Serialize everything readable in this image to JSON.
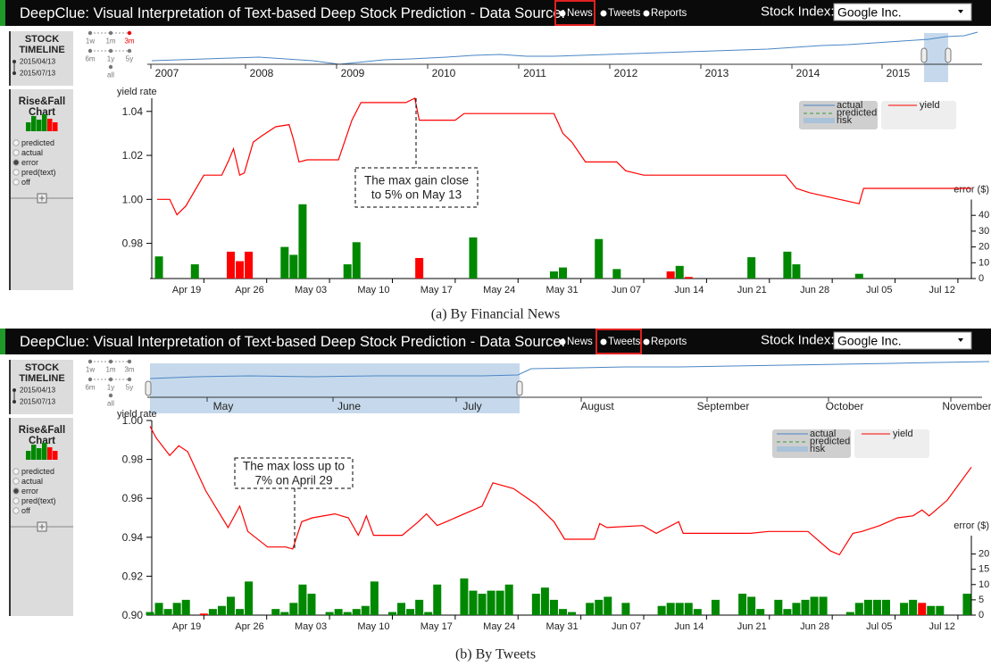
{
  "panels": [
    {
      "header": {
        "title": "DeepClue: Visual Interpretation of Text-based Deep Stock Prediction - Data Source:",
        "sources": [
          "News",
          "Tweets",
          "Reports"
        ],
        "selected_source": 0,
        "stock_label": "Stock Index:",
        "stock": "Google Inc."
      },
      "sidebar": {
        "timeline_title": [
          "STOCK",
          "TIMELINE"
        ],
        "ranges": [
          "1w",
          "1m",
          "3m",
          "6m",
          "1y",
          "5y",
          "all"
        ],
        "selected_range": 2,
        "start_date": "2015/04/13",
        "end_date": "2015/07/13",
        "rise_fall_title": [
          "Rise&Fall",
          "Chart"
        ],
        "options": [
          "predicted",
          "actual",
          "error",
          "pred(text)",
          "off"
        ],
        "selected_option": 2
      },
      "timeline_labels": [
        "2007",
        "2008",
        "2009",
        "2010",
        "2011",
        "2012",
        "2013",
        "2014",
        "2015"
      ],
      "chart": {
        "y_label": "yield rate",
        "y2_label": "error ($)",
        "ylim": [
          0.964,
          1.046
        ],
        "yticks": [
          1.04,
          1.02,
          {
            "value": 1.0,
            "label": "1.00"
          },
          0.98
        ],
        "y2lim": [
          0,
          50
        ],
        "y2ticks": [
          0,
          10,
          20,
          30,
          40
        ],
        "xlim": [
          0,
          91.5
        ],
        "xticks": [
          {
            "value": 6,
            "label": "Apr 19"
          },
          {
            "value": 13,
            "label": "Apr 26"
          },
          {
            "value": 20,
            "label": "May 03"
          },
          {
            "value": 27,
            "label": "May 10"
          },
          {
            "value": 34,
            "label": "May 17"
          },
          {
            "value": 41,
            "label": "May 24"
          },
          {
            "value": 48,
            "label": "May 31"
          },
          {
            "value": 55,
            "label": "Jun 07"
          },
          {
            "value": 62,
            "label": "Jun 14"
          },
          {
            "value": 69,
            "label": "Jun 21"
          },
          {
            "value": 76,
            "label": "Jun 28"
          },
          {
            "value": 83,
            "label": "Jul 05"
          },
          {
            "value": 90,
            "label": "Jul 12"
          }
        ],
        "legend": [
          "actual",
          "predicted",
          "risk"
        ],
        "yield": {
          "name": "yield",
          "color": "#ff0000",
          "x": [
            0.8,
            2.2,
            3,
            4,
            6,
            8,
            8.8,
            9.3,
            10,
            10.5,
            11.5,
            12.5,
            14,
            15.5,
            16,
            16.6,
            17.5,
            21,
            22.5,
            23.5,
            28.5,
            29.5,
            30,
            34,
            35,
            45,
            46,
            47,
            48.5,
            52,
            53,
            55,
            70.8,
            72,
            73.5,
            79,
            79.5,
            91.5
          ],
          "values": [
            1.0,
            1.0,
            0.993,
            0.997,
            1.011,
            1.011,
            1.018,
            1.023,
            1.011,
            1.012,
            1.026,
            1.029,
            1.033,
            1.034,
            1.027,
            1.017,
            1.018,
            1.018,
            1.036,
            1.044,
            1.044,
            1.046,
            1.036,
            1.036,
            1.039,
            1.039,
            1.03,
            1.026,
            1.017,
            1.017,
            1.013,
            1.011,
            1.011,
            1.005,
            1.003,
            0.998,
            1.005,
            1.005
          ]
        },
        "error": {
          "x": [
            1,
            5,
            9,
            10,
            11,
            15,
            16,
            17,
            22,
            23,
            30,
            36,
            45,
            46,
            50,
            52,
            58,
            59,
            60,
            67,
            71,
            72,
            79
          ],
          "values": [
            14,
            9,
            17,
            11,
            17,
            20,
            15,
            47,
            9,
            23,
            13,
            26,
            4.5,
            7,
            25,
            6,
            4.5,
            8,
            1,
            13.5,
            17,
            9,
            3
          ],
          "colors": [
            "#080",
            "#080",
            "#f00",
            "#f00",
            "#f00",
            "#080",
            "#080",
            "#080",
            "#080",
            "#080",
            "#f00",
            "#080",
            "#080",
            "#080",
            "#080",
            "#080",
            "#f00",
            "#080",
            "#f00",
            "#080",
            "#080",
            "#080",
            "#080"
          ]
        },
        "annotation": [
          "The max gain close",
          "to 5% on May 13"
        ]
      },
      "caption": "(a) By Financial News"
    },
    {
      "header": {
        "title": "DeepClue: Visual Interpretation of Text-based Deep Stock Prediction - Data Source:",
        "sources": [
          "News",
          "Tweets",
          "Reports"
        ],
        "selected_source": 1,
        "stock_label": "Stock Index:",
        "stock": "Google Inc."
      },
      "sidebar": {
        "timeline_title": [
          "STOCK",
          "TIMELINE"
        ],
        "ranges": [
          "1w",
          "1m",
          "3m",
          "6m",
          "1y",
          "5y",
          "all"
        ],
        "start_date": "2015/04/13",
        "end_date": "2015/07/13",
        "rise_fall_title": [
          "Rise&Fall",
          "Chart"
        ],
        "options": [
          "predicted",
          "actual",
          "error",
          "pred(text)",
          "off"
        ],
        "selected_option": 2
      },
      "timeline_labels": [
        "May",
        "June",
        "July",
        "August",
        "September",
        "October",
        "November"
      ],
      "chart": {
        "y_label": "yield rate",
        "y2_label": "error ($)",
        "ylim": [
          0.9,
          1.0
        ],
        "yticks": [
          {
            "value": 1.0,
            "label": "1.00"
          },
          0.98,
          0.96,
          0.94,
          0.92,
          {
            "value": 0.9,
            "label": "0.90"
          }
        ],
        "y2lim": [
          0,
          26
        ],
        "y2ticks": [
          0,
          5,
          10,
          15,
          20
        ],
        "xlim": [
          0,
          91.5
        ],
        "xticks": [
          {
            "value": 6,
            "label": "Apr 19"
          },
          {
            "value": 13,
            "label": "Apr 26"
          },
          {
            "value": 20,
            "label": "May 03"
          },
          {
            "value": 27,
            "label": "May 10"
          },
          {
            "value": 34,
            "label": "May 17"
          },
          {
            "value": 41,
            "label": "May 24"
          },
          {
            "value": 48,
            "label": "May 31"
          },
          {
            "value": 55,
            "label": "Jun 07"
          },
          {
            "value": 62,
            "label": "Jun 14"
          },
          {
            "value": 69,
            "label": "Jun 21"
          },
          {
            "value": 76,
            "label": "Jun 28"
          },
          {
            "value": 83,
            "label": "Jul 05"
          },
          {
            "value": 90,
            "label": "Jul 12"
          }
        ],
        "legend": [
          "actual",
          "predicted",
          "risk"
        ],
        "yield": {
          "name": "yield",
          "color": "#ff0000",
          "x": [
            0,
            0.7,
            2.2,
            3.2,
            4.2,
            6.2,
            8.7,
            10,
            10.9,
            13.1,
            15.1,
            15.9,
            16.9,
            18.1,
            20.6,
            22.1,
            23.2,
            23.6,
            24.1,
            24.9,
            28.1,
            29.9,
            30.8,
            32,
            33,
            37,
            38.2,
            40.5,
            43,
            45,
            46.2,
            49.5,
            50.1,
            50.9,
            54.9,
            56.4,
            58.9,
            59.4,
            66.9,
            68.9,
            73.3,
            75.8,
            76.8,
            78.3,
            79.3,
            81.3,
            83.3,
            85,
            86,
            86.8,
            88.8,
            91.5
          ],
          "values": [
            0.997,
            0.991,
            0.982,
            0.987,
            0.984,
            0.964,
            0.945,
            0.956,
            0.943,
            0.935,
            0.935,
            0.934,
            0.948,
            0.95,
            0.952,
            0.95,
            0.941,
            0.945,
            0.951,
            0.941,
            0.941,
            0.948,
            0.952,
            0.946,
            0.948,
            0.956,
            0.968,
            0.965,
            0.957,
            0.948,
            0.939,
            0.939,
            0.947,
            0.945,
            0.946,
            0.942,
            0.948,
            0.942,
            0.942,
            0.943,
            0.943,
            0.933,
            0.931,
            0.942,
            0.943,
            0.946,
            0.95,
            0.951,
            0.954,
            0.951,
            0.959,
            0.976
          ]
        },
        "error": {
          "x": [
            0,
            1,
            2,
            3,
            4,
            6,
            7,
            8,
            9,
            10,
            11,
            14,
            15,
            16,
            17,
            18,
            20,
            21,
            22,
            23,
            24,
            25,
            27,
            28,
            29,
            30,
            31,
            32,
            35,
            36,
            37,
            38,
            39,
            40,
            43,
            44,
            45,
            46,
            47,
            49,
            50,
            51,
            53,
            57,
            58,
            59,
            60,
            61,
            63,
            66,
            67,
            68,
            70,
            71,
            72,
            73,
            74,
            75,
            78,
            79,
            80,
            81,
            82,
            84,
            85,
            86,
            87,
            88,
            91
          ],
          "values": [
            1,
            4,
            2,
            4,
            5,
            0.5,
            2,
            3,
            6,
            2,
            11,
            2,
            1,
            4,
            10,
            7,
            1,
            2,
            1,
            2,
            3,
            11,
            1,
            4,
            2,
            5,
            1,
            10,
            12,
            8,
            7,
            8,
            8,
            10,
            7,
            9,
            5,
            2,
            1,
            4,
            5,
            6,
            4,
            3,
            4,
            4,
            4,
            2,
            5,
            7,
            6,
            2,
            5,
            2,
            4,
            5,
            6,
            6,
            1,
            4,
            5,
            5,
            5,
            4,
            5,
            4,
            3,
            3,
            7
          ],
          "colors": [
            "#080",
            "#080",
            "#080",
            "#080",
            "#080",
            "#f00",
            "#080",
            "#080",
            "#080",
            "#080",
            "#080",
            "#080",
            "#080",
            "#080",
            "#080",
            "#080",
            "#080",
            "#080",
            "#080",
            "#080",
            "#080",
            "#080",
            "#080",
            "#080",
            "#080",
            "#080",
            "#080",
            "#080",
            "#080",
            "#080",
            "#080",
            "#080",
            "#080",
            "#080",
            "#080",
            "#080",
            "#080",
            "#080",
            "#080",
            "#080",
            "#080",
            "#080",
            "#080",
            "#080",
            "#080",
            "#080",
            "#080",
            "#080",
            "#080",
            "#080",
            "#080",
            "#080",
            "#080",
            "#080",
            "#080",
            "#080",
            "#080",
            "#080",
            "#080",
            "#080",
            "#080",
            "#080",
            "#080",
            "#080",
            "#080",
            "#f00",
            "#080",
            "#080",
            "#080"
          ]
        },
        "annotation": [
          "The max loss up to",
          "7% on April 29"
        ]
      },
      "caption": "(b) By Tweets"
    }
  ]
}
